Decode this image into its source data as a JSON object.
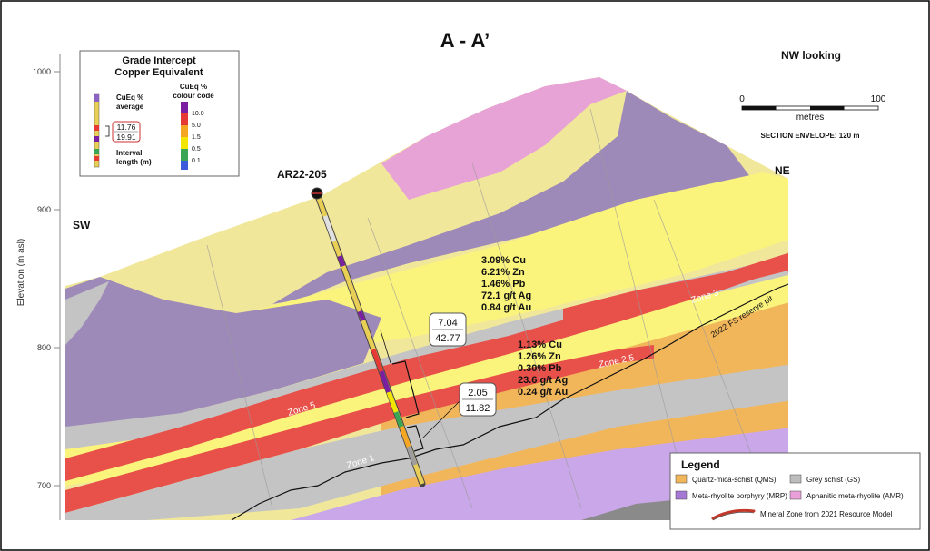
{
  "title": "A - A’",
  "view_direction": "NW looking",
  "scale_bar": {
    "start": "0",
    "end": "100",
    "unit": "metres"
  },
  "section_envelope": "SECTION ENVELOPE: 120 m",
  "elevation_axis": {
    "label": "Elevation (m asl)",
    "ticks": [
      {
        "value": 1000,
        "label": "1000"
      },
      {
        "value": 900,
        "label": "900"
      },
      {
        "value": 800,
        "label": "800"
      },
      {
        "value": 700,
        "label": "700"
      }
    ]
  },
  "directions": {
    "left": "SW",
    "right": "NE"
  },
  "drillhole": {
    "name": "AR22-205"
  },
  "grade_key": {
    "title_line1": "Grade Intercept",
    "title_line2": "Copper Equivalent",
    "avg_label_line1": "CuEq %",
    "avg_label_line2": "average",
    "avg_value": "11.76",
    "interval_value": "19.91",
    "interval_label_line1": "Interval",
    "interval_label_line2": "length (m)",
    "colour_code_line1": "CuEq %",
    "colour_code_line2": "colour code",
    "colour_scale": [
      {
        "value": "10.0",
        "color": "#7a1fa2"
      },
      {
        "value": "5.0",
        "color": "#e53935"
      },
      {
        "value": "1.5",
        "color": "#f5a623"
      },
      {
        "value": "0.5",
        "color": "#f2e600"
      },
      {
        "value": "0.1",
        "color": "#3aa655"
      }
    ],
    "bottom_color": "#3b5bdb"
  },
  "intercepts": [
    {
      "cueq": "7.04",
      "length": "42.77",
      "assays": [
        "3.09% Cu",
        "6.21% Zn",
        "1.46% Pb",
        "72.1 g/t Ag",
        "0.84 g/t Au"
      ]
    },
    {
      "cueq": "2.05",
      "length": "11.82",
      "assays": [
        "1.13% Cu",
        "1.26% Zn",
        "0.30% Pb",
        "23.6 g/t Ag",
        "0.24 g/t Au"
      ]
    }
  ],
  "zone_labels": [
    "Zone 1",
    "Zone 2.5",
    "Zone 3",
    "Zone 5"
  ],
  "pit_label": "2022 FS reserve pit",
  "legend": {
    "title": "Legend",
    "items": [
      {
        "label": "Quartz-mica-schist (QMS)",
        "color": "#f2b65a"
      },
      {
        "label": "Grey schist (GS)",
        "color": "#bdbdbd"
      },
      {
        "label": "Meta-rhyolite porphyry (MRP)",
        "color": "#a678d6"
      },
      {
        "label": "Aphanitic meta-rhyolite (AMR)",
        "color": "#e9a0d8"
      }
    ],
    "mineral_zone": "Mineral Zone from 2021 Resource Model"
  },
  "colors": {
    "qms": "#f2b65a",
    "gs": "#c4c4c4",
    "mrp": "#9e8ab8",
    "amr": "#e7a3d6",
    "pale_yellow": "#f1e79a",
    "bright_yellow": "#fbf47c",
    "zone_red": "#e8504a",
    "lilac": "#c9a7e8",
    "dark_grey": "#8a8a8a"
  }
}
